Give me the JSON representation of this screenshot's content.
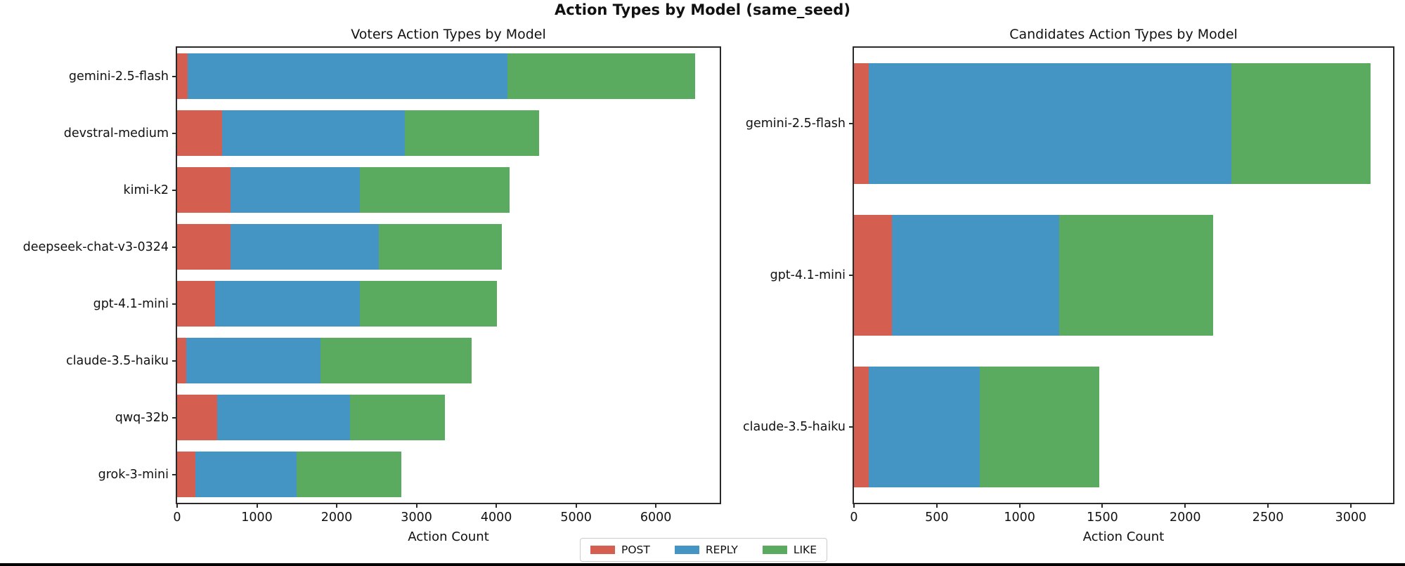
{
  "figure": {
    "suptitle": "Action Types by Model (same_seed)",
    "legend": {
      "items": [
        {
          "label": "POST",
          "color": "#d45f51"
        },
        {
          "label": "REPLY",
          "color": "#4494c4"
        },
        {
          "label": "LIKE",
          "color": "#5aab5f"
        }
      ]
    }
  },
  "chart_data": [
    {
      "type": "bar",
      "orientation": "horizontal",
      "stacked": true,
      "title": "Voters Action Types by Model",
      "xlabel": "Action Count",
      "categories": [
        "gemini-2.5-flash",
        "devstral-medium",
        "kimi-k2",
        "deepseek-chat-v3-0324",
        "gpt-4.1-mini",
        "claude-3.5-haiku",
        "qwq-32b",
        "grok-3-mini"
      ],
      "series": [
        {
          "name": "POST",
          "color": "#d45f51",
          "values": [
            135,
            560,
            670,
            670,
            480,
            115,
            500,
            225
          ]
        },
        {
          "name": "REPLY",
          "color": "#4494c4",
          "values": [
            4005,
            2295,
            1620,
            1855,
            1810,
            1685,
            1665,
            1270
          ]
        },
        {
          "name": "LIKE",
          "color": "#5aab5f",
          "values": [
            2355,
            1685,
            1880,
            1545,
            1715,
            1890,
            1195,
            1315
          ]
        }
      ],
      "totals": [
        6495,
        4540,
        4170,
        4070,
        4005,
        3690,
        3360,
        2810
      ],
      "xlim": [
        0,
        6800
      ],
      "xticks": [
        0,
        1000,
        2000,
        3000,
        4000,
        5000,
        6000
      ],
      "grid": false,
      "legend_position": "bottom-center"
    },
    {
      "type": "bar",
      "orientation": "horizontal",
      "stacked": true,
      "title": "Candidates Action Types by Model",
      "xlabel": "Action Count",
      "categories": [
        "gemini-2.5-flash",
        "gpt-4.1-mini",
        "claude-3.5-haiku"
      ],
      "series": [
        {
          "name": "POST",
          "color": "#d45f51",
          "values": [
            90,
            230,
            90
          ]
        },
        {
          "name": "REPLY",
          "color": "#4494c4",
          "values": [
            2190,
            1010,
            670
          ]
        },
        {
          "name": "LIKE",
          "color": "#5aab5f",
          "values": [
            840,
            930,
            720
          ]
        }
      ],
      "totals": [
        3120,
        2170,
        1480
      ],
      "xlim": [
        0,
        3255
      ],
      "xticks": [
        0,
        500,
        1000,
        1500,
        2000,
        2500,
        3000
      ],
      "grid": false,
      "legend_position": "bottom-center"
    }
  ]
}
